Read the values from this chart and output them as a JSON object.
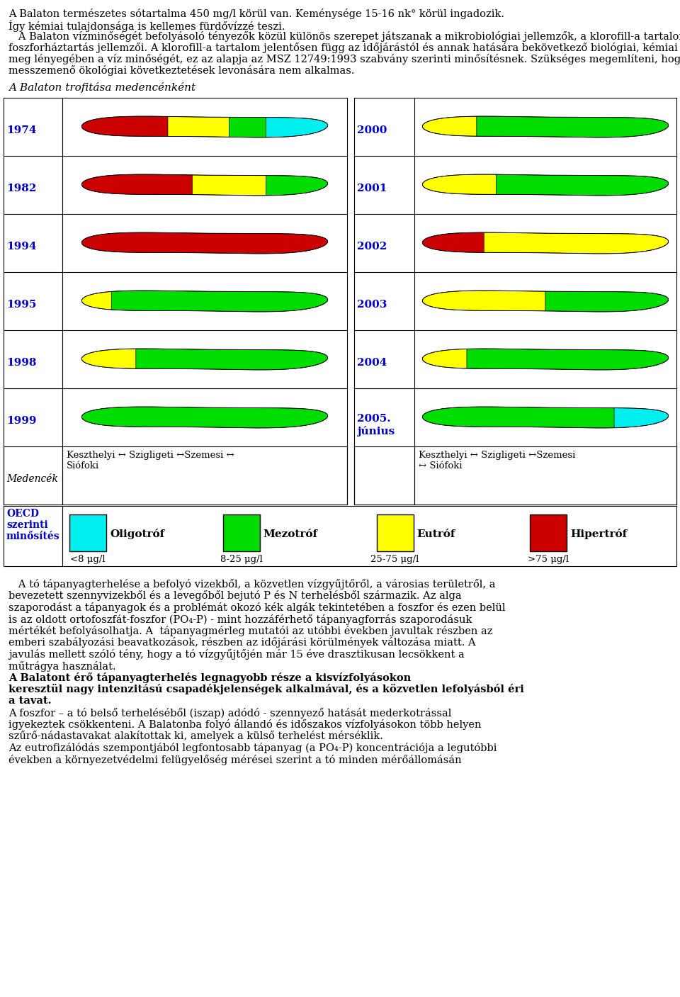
{
  "section_title": "A Balaton trofitása medencénként",
  "years_left": [
    "1974",
    "1982",
    "1994",
    "1995",
    "1998",
    "1999"
  ],
  "years_right": [
    "2000",
    "2001",
    "2002",
    "2003",
    "2004",
    "2005.\njúnius"
  ],
  "medencek_left": "Keszthelyi ↔ Szigligeti ↔Szemesi ↔\nSiófoki",
  "medencek_right": "Keszthelyi ↔ Szigligeti ↔Szemesi\n↔ Siófoki",
  "legend_labels": [
    "Oligotróf",
    "Mezotróf",
    "Eutróf",
    "Hipertróf"
  ],
  "legend_sublabels": [
    "<8 μg/l",
    "8-25 μg/l",
    "25-75 μg/l",
    ">75 μg/l"
  ],
  "legend_colors": [
    "#00EFEF",
    "#00DD00",
    "#FFFF00",
    "#CC0000"
  ],
  "blue_color": "#0000CC",
  "bg_color": "#FFFFFF",
  "lake_colors": {
    "1974": [
      [
        "#CC0000",
        0.35
      ],
      [
        "#FFFF00",
        0.25
      ],
      [
        "#00DD00",
        0.15
      ],
      [
        "#00EFEF",
        0.25
      ]
    ],
    "1982": [
      [
        "#CC0000",
        0.45
      ],
      [
        "#FFFF00",
        0.3
      ],
      [
        "#00DD00",
        0.25
      ]
    ],
    "1994": [
      [
        "#CC0000",
        1.0
      ]
    ],
    "1995": [
      [
        "#FFFF00",
        0.12
      ],
      [
        "#00DD00",
        0.88
      ]
    ],
    "1998": [
      [
        "#FFFF00",
        0.22
      ],
      [
        "#00DD00",
        0.78
      ]
    ],
    "1999": [
      [
        "#00DD00",
        1.0
      ]
    ],
    "2000": [
      [
        "#FFFF00",
        0.22
      ],
      [
        "#00DD00",
        0.78
      ]
    ],
    "2001": [
      [
        "#FFFF00",
        0.3
      ],
      [
        "#00DD00",
        0.7
      ]
    ],
    "2002": [
      [
        "#CC0000",
        0.25
      ],
      [
        "#FFFF00",
        0.75
      ]
    ],
    "2003": [
      [
        "#FFFF00",
        0.5
      ],
      [
        "#00DD00",
        0.5
      ]
    ],
    "2004": [
      [
        "#FFFF00",
        0.18
      ],
      [
        "#00DD00",
        0.82
      ]
    ],
    "2005.\njúnius": [
      [
        "#00DD00",
        0.78
      ],
      [
        "#00EFEF",
        0.22
      ]
    ]
  },
  "top_lines": [
    "A Balaton természetes sótartalma 450 mg/l körül van. Keménysége 15-16 nk° körül ingadozik.",
    "Így kémiai tulajdonsága is kellemes fürdővízzé teszi.",
    "   A Balaton vízminőségét befolyásoló tényezők közül különös szerepet játszanak a mikrobiológiai jellemzők, a klorofill-a tartalom alakulása és az azt befolyásoló nitrogén és",
    "foszforháztartás jellemzői. A klorofill-a tartalom jelentősen függ az időjárástól és annak hatására bekövetkező biológiai, kémiai és egyéb folyamatok változásától. Ezek határozzák",
    "meg lényegében a víz minőségét, ez az alapja az MSZ 12749:1993 szabvány szerinti minősítésnek. Szükséges megemlíteni, hogy ez a minősítés szennyezéscentrikus, ezért",
    "messzemenő ökológiai következtetések levonására nem alkalmas."
  ],
  "bottom_lines_normal": [
    "   A tó tápanyagterhelése a befolyó vizekből, a közvetlen vízgyűjtőről, a városias területről, a",
    "bevezetett szennyvizekből és a levegőből bejutó P és N terhelésből származik. Az alga",
    "szaporodást a tápanyagok és a problémát okozó kék algák tekintetében a foszfor és ezen belül",
    "is az oldott ortofoszfát-foszfor (PO₄-P) - mint hozzáférhető tápanyagforrás szaporodásuk",
    "mértékét befolyásolhatja. A  tápanyagmérleg mutatói az utóbbi években javultak részben az",
    "emberi szabályozási beavatkozások, részben az időjárási körülmények változása miatt. A",
    "javulás mellett szóló tény, hogy a tó vízgyűjtőjén már 15 éve drasztikusan lecsökkent a",
    "műtrágya használat."
  ],
  "bottom_bold_text": "A Balatont érő tápanyagterhelés legnagyobb része a kisvízfolyásokon\nkeresztül nagy intenzitású csapadékjelenségek alkalmával, és a közvetlen lefolyásból éri\na tavat.",
  "bottom_lines_after_bold": [
    "A foszfor – a tó belső terheléséből (iszap) adódó - szennyező hatását mederkotrással",
    "igyekeztek csökkenteni. A Balatonba folyó állandó és időszakos vízfolyásokon több helyen",
    "szűrő-nádastavakat alakítottak ki, amelyek a külső terhelést mérséklik.",
    "Az eutrofizálódás szempontjából legfontosabb tápanyag (a PO₄-P) koncentrációja a legutóbbi",
    "években a környezetvédelmi felügyelőség mérései szerint a tó minden mérőállomásán"
  ]
}
